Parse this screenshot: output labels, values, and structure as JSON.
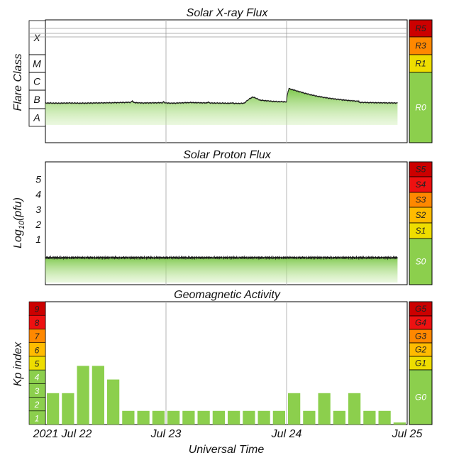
{
  "chart_data": [
    {
      "type": "area",
      "title": "Solar X-ray Flux",
      "ylabel": "Flare Class",
      "y_scale": "log",
      "y_range_labels": [
        "A",
        "X"
      ],
      "y_classes": [
        "A",
        "B",
        "C",
        "M",
        "X"
      ],
      "x_range": [
        "2021 Jul 22",
        "Jul 25"
      ],
      "grid": true,
      "series": [
        {
          "color": "#8ccf4d",
          "points": [
            [
              0.0,
              3.5
            ],
            [
              0.1,
              3.4
            ],
            [
              0.2,
              3.5
            ],
            [
              0.3,
              3.4
            ],
            [
              0.4,
              3.5
            ],
            [
              0.55,
              3.6
            ],
            [
              0.7,
              3.8
            ],
            [
              0.8,
              3.5
            ],
            [
              0.95,
              3.6
            ],
            [
              1.05,
              3.4
            ],
            [
              1.2,
              3.7
            ],
            [
              1.35,
              3.5
            ],
            [
              1.5,
              3.4
            ],
            [
              1.6,
              3.3
            ],
            [
              1.65,
              3.4
            ],
            [
              1.72,
              7.5
            ],
            [
              1.78,
              5.0
            ],
            [
              1.9,
              4.2
            ],
            [
              2.05,
              4.0
            ],
            [
              2.2,
              3.8
            ],
            [
              2.4,
              4.0
            ],
            [
              2.6,
              3.8
            ],
            [
              2.75,
              3.6
            ],
            [
              2.92,
              3.5
            ],
            [
              3.0,
              3.5
            ]
          ],
          "spikes": [
            [
              0.72,
              4.6
            ],
            [
              0.98,
              4.1
            ],
            [
              1.35,
              4.0
            ],
            [
              1.55,
              3.6
            ],
            [
              2.22,
              5.3
            ],
            [
              2.46,
              4.4
            ],
            [
              2.55,
              4.3
            ],
            [
              3.1,
              3.5
            ],
            [
              3.8,
              3.4
            ]
          ],
          "flare": {
            "start": 2.0,
            "peak_x": 2.02,
            "peak": 22.0,
            "decay_end": 2.6
          }
        }
      ],
      "scale_labels": [
        {
          "label": "R5",
          "color": "#cc0000"
        },
        {
          "label": "R3",
          "color": "#ff8800"
        },
        {
          "label": "R1",
          "color": "#eedd00"
        },
        {
          "label": "R0",
          "color": "#8ccf4d"
        }
      ]
    },
    {
      "type": "area",
      "title": "Solar Proton Flux",
      "ylabel": "Log10(pfu)",
      "ylabel_parts": {
        "base": "Log",
        "sub": "10",
        "rest": "(pfu)"
      },
      "y_ticks": [
        1,
        2,
        3,
        4,
        5
      ],
      "ylim": [
        -0.2,
        6
      ],
      "x_range": [
        "2021 Jul 22",
        "Jul 25"
      ],
      "grid": true,
      "series": [
        {
          "color": "#8ccf4d",
          "level": -0.12
        }
      ],
      "scale_labels": [
        {
          "label": "S5",
          "color": "#cc0000"
        },
        {
          "label": "S4",
          "color": "#ee1111"
        },
        {
          "label": "S3",
          "color": "#ff8800"
        },
        {
          "label": "S2",
          "color": "#ffbb00"
        },
        {
          "label": "S1",
          "color": "#eedd00"
        },
        {
          "label": "S0",
          "color": "#8ccf4d"
        }
      ]
    },
    {
      "type": "bar",
      "title": "Geomagnetic Activity",
      "ylabel": "Kp index",
      "y_ticks": [
        "1",
        "2",
        "3",
        "4",
        "5",
        "6",
        "7",
        "8",
        "9"
      ],
      "ylim": [
        0,
        9
      ],
      "xlabel": "Universal Time",
      "x_tick_labels": [
        "2021 Jul 22",
        "Jul 23",
        "Jul 24",
        "Jul 25"
      ],
      "bar_interval_hours": 3,
      "values": [
        2.3,
        2.3,
        4.3,
        4.3,
        3.3,
        1.0,
        1.0,
        1.0,
        1.0,
        1.0,
        1.0,
        1.0,
        1.0,
        1.0,
        1.0,
        1.0,
        2.3,
        1.0,
        2.3,
        1.0,
        2.3,
        1.0,
        1.0,
        0.15
      ],
      "bar_color": "#8ccf4d",
      "tick_colors": [
        "#8ccf4d",
        "#8ccf4d",
        "#8ccf4d",
        "#8ccf4d",
        "#eedd00",
        "#ffbb00",
        "#ff8800",
        "#ee1111",
        "#cc0000"
      ],
      "scale_labels": [
        {
          "label": "G5",
          "color": "#cc0000"
        },
        {
          "label": "G4",
          "color": "#ee1111"
        },
        {
          "label": "G3",
          "color": "#ff8800"
        },
        {
          "label": "G2",
          "color": "#ffbb00"
        },
        {
          "label": "G1",
          "color": "#eedd00"
        },
        {
          "label": "G0",
          "color": "#8ccf4d"
        }
      ]
    }
  ]
}
